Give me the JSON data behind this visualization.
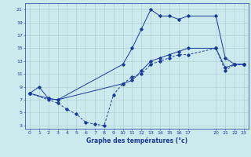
{
  "background_color": "#cce9ed",
  "grid_color": "#aacccc",
  "line_color": "#1a3a9a",
  "title": "Graphe des températures (°c)",
  "xlim": [
    -0.5,
    23.5
  ],
  "ylim": [
    2.5,
    22
  ],
  "xticks": [
    0,
    1,
    2,
    3,
    4,
    5,
    6,
    7,
    8,
    9,
    10,
    11,
    12,
    13,
    14,
    15,
    16,
    17,
    20,
    21,
    22,
    23
  ],
  "yticks": [
    3,
    5,
    7,
    9,
    11,
    13,
    15,
    17,
    19,
    21
  ],
  "line1_x": [
    0,
    1,
    2,
    3,
    10,
    11,
    12,
    13,
    14,
    15,
    16,
    17,
    20,
    21,
    22,
    23
  ],
  "line1_y": [
    8,
    9,
    7.2,
    7,
    12.5,
    15,
    18,
    21,
    20,
    20,
    19.5,
    20,
    20,
    13.5,
    12.5,
    12.5
  ],
  "line2_x": [
    0,
    2,
    3,
    4,
    5,
    6,
    7,
    8,
    9,
    10,
    11,
    12,
    13,
    14,
    15,
    16,
    17,
    20,
    21,
    22,
    23
  ],
  "line2_y": [
    8,
    7,
    6.5,
    5.5,
    4.8,
    3.5,
    3.2,
    3,
    7.8,
    9.5,
    10.5,
    11,
    12.5,
    13,
    13.5,
    14,
    14,
    15,
    11.5,
    12.5,
    12.5
  ],
  "line3_x": [
    0,
    2,
    3,
    10,
    11,
    12,
    13,
    14,
    15,
    16,
    17,
    20,
    21,
    22,
    23
  ],
  "line3_y": [
    8,
    7.2,
    7,
    9.5,
    10,
    11.5,
    13,
    13.5,
    14,
    14.5,
    15,
    15,
    12,
    12.5,
    12.5
  ],
  "xlabel_fontsize": 5.5,
  "tick_fontsize": 4.5,
  "lw": 0.7,
  "ms": 1.8
}
